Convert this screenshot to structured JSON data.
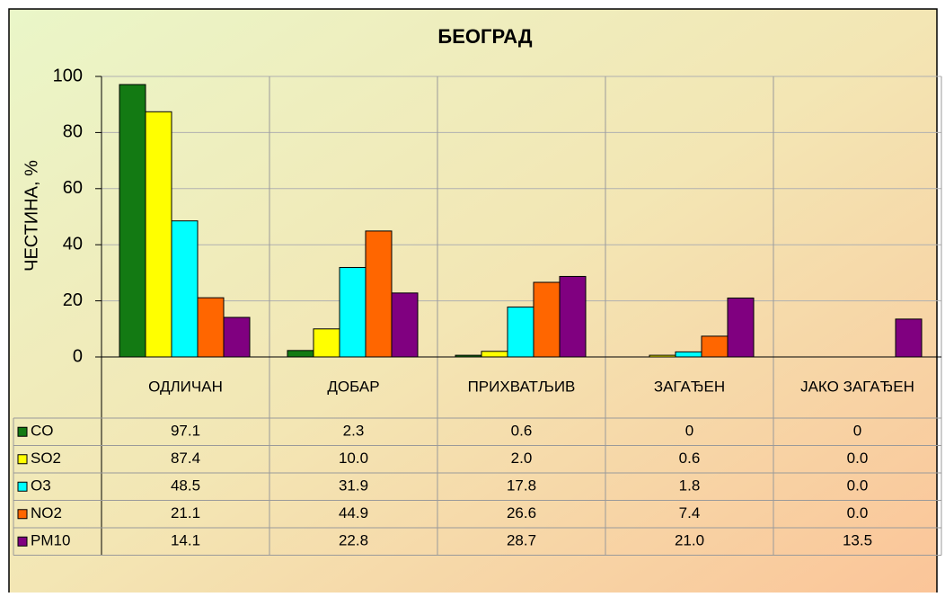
{
  "chart_data": {
    "type": "bar",
    "title": "БЕОГРАД",
    "y_label": "ЧЕСТИНА, %",
    "categories": [
      "ОДЛИЧАН",
      "ДОБАР",
      "ПРИХВАТЉИВ",
      "ЗАГАЂЕН",
      "ЈАКО ЗАГАЂЕН"
    ],
    "series": [
      {
        "name": "CO",
        "color": "#137a13",
        "values": [
          97.1,
          2.3,
          0.6,
          0,
          0
        ],
        "value_labels": [
          "97.1",
          "2.3",
          "0.6",
          "0",
          "0"
        ]
      },
      {
        "name": "SO2",
        "color": "#ffff00",
        "values": [
          87.4,
          10.0,
          2.0,
          0.6,
          0.0
        ],
        "value_labels": [
          "87.4",
          "10.0",
          "2.0",
          "0.6",
          "0.0"
        ]
      },
      {
        "name": "O3",
        "color": "#00ffff",
        "values": [
          48.5,
          31.9,
          17.8,
          1.8,
          0.0
        ],
        "value_labels": [
          "48.5",
          "31.9",
          "17.8",
          "1.8",
          "0.0"
        ]
      },
      {
        "name": "NO2",
        "color": "#ff6600",
        "values": [
          21.1,
          44.9,
          26.6,
          7.4,
          0.0
        ],
        "value_labels": [
          "21.1",
          "44.9",
          "26.6",
          "7.4",
          "0.0"
        ]
      },
      {
        "name": "PM10",
        "color": "#800080",
        "values": [
          14.1,
          22.8,
          28.7,
          21.0,
          13.5
        ],
        "value_labels": [
          "14.1",
          "22.8",
          "28.7",
          "21.0",
          "13.5"
        ]
      }
    ],
    "ylim": [
      0,
      100
    ],
    "yticks": [
      0,
      20,
      40,
      60,
      80,
      100
    ],
    "grid": true
  }
}
